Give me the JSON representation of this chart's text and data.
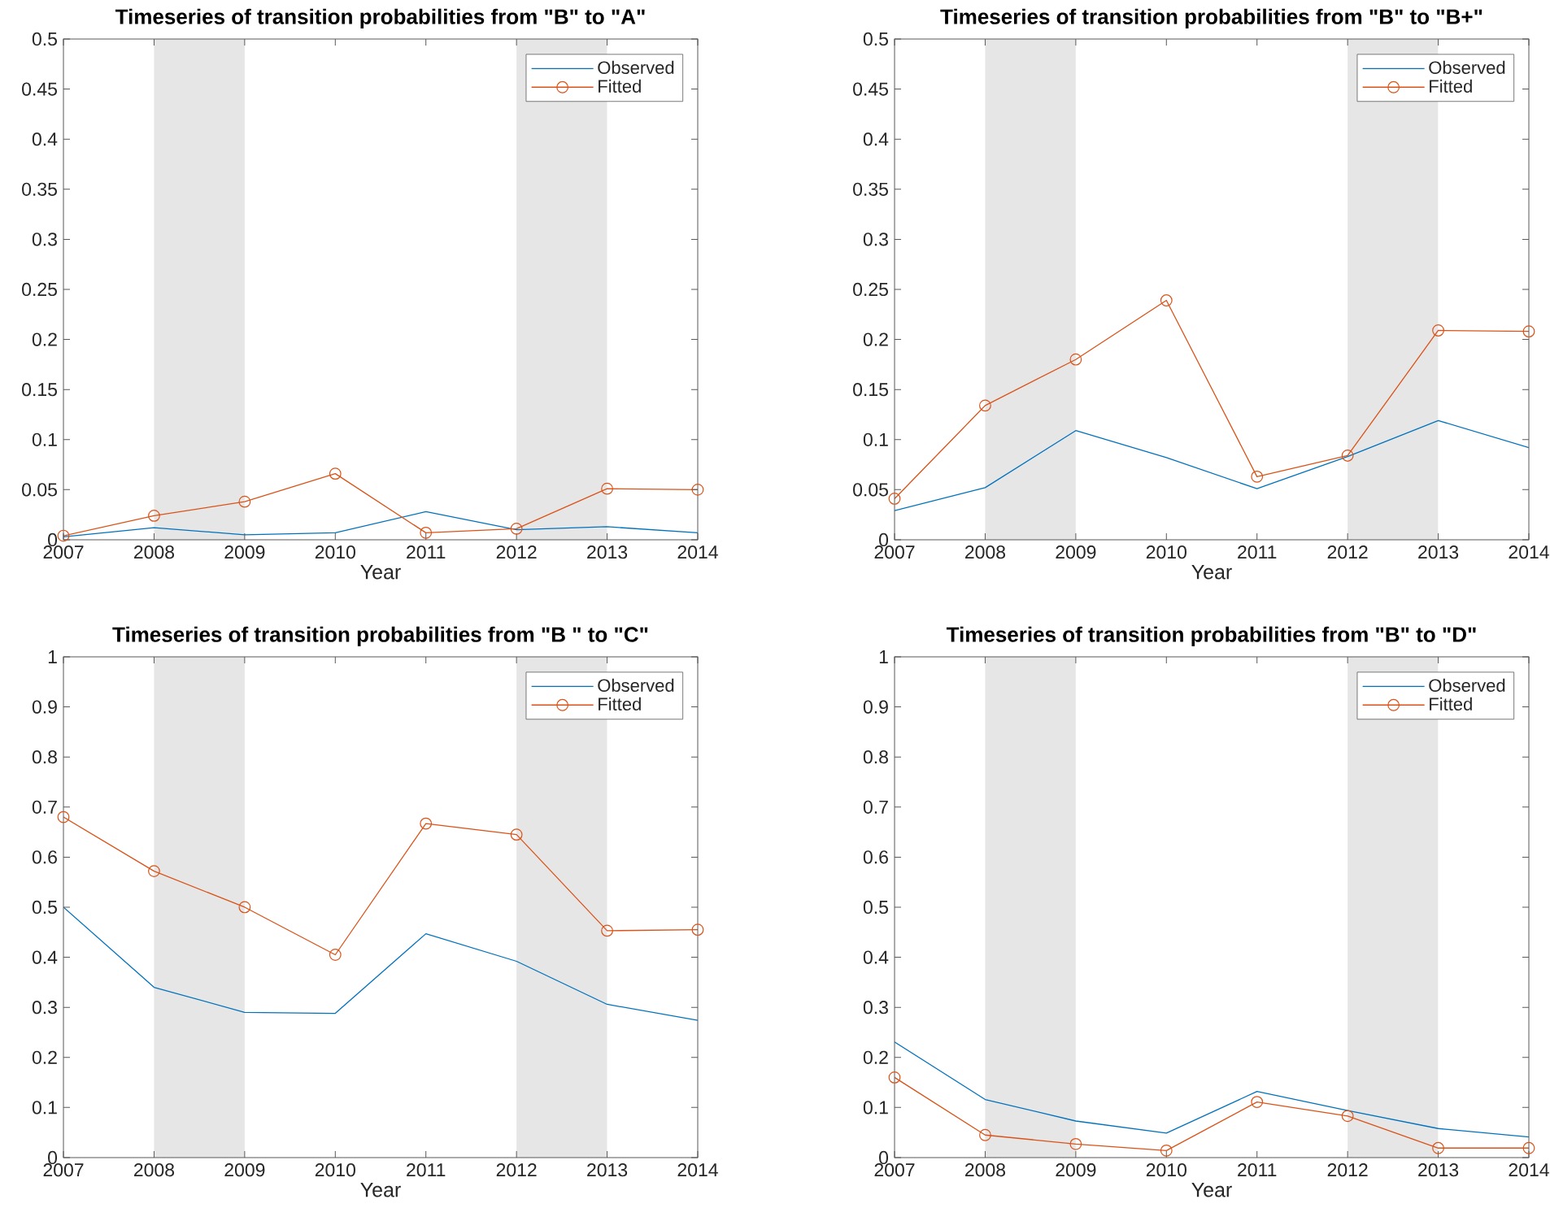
{
  "chart_data": [
    {
      "type": "line",
      "title": "Timeseries of transition probabilities from \"B\" to \"A\"",
      "xlabel": "Year",
      "x": [
        2007,
        2008,
        2009,
        2010,
        2011,
        2012,
        2013,
        2014
      ],
      "xlim": [
        2007,
        2014
      ],
      "xticks": [
        2007,
        2008,
        2009,
        2010,
        2011,
        2012,
        2013,
        2014
      ],
      "ylim": [
        0,
        0.5
      ],
      "yticks": [
        0,
        0.05,
        0.1,
        0.15,
        0.2,
        0.25,
        0.3,
        0.35,
        0.4,
        0.45,
        0.5
      ],
      "legend": "top right",
      "bands": [
        {
          "axis": "x",
          "from": 2008,
          "to": 2009,
          "color": "#e6e6e6"
        },
        {
          "axis": "x",
          "from": 2012,
          "to": 2013,
          "color": "#e6e6e6"
        }
      ],
      "series": [
        {
          "name": "Observed",
          "color": "#0072bd",
          "values": [
            0.003,
            0.012,
            0.005,
            0.007,
            0.028,
            0.01,
            0.013,
            0.007
          ]
        },
        {
          "name": "Fitted",
          "color": "#d95319",
          "marker": "circle",
          "values": [
            0.004,
            0.024,
            0.038,
            0.066,
            0.007,
            0.011,
            0.051,
            0.05
          ]
        }
      ]
    },
    {
      "type": "line",
      "title": "Timeseries of transition probabilities from \"B\" to \"B+\"",
      "xlabel": "Year",
      "x": [
        2007,
        2008,
        2009,
        2010,
        2011,
        2012,
        2013,
        2014
      ],
      "xlim": [
        2007,
        2014
      ],
      "xticks": [
        2007,
        2008,
        2009,
        2010,
        2011,
        2012,
        2013,
        2014
      ],
      "ylim": [
        0,
        0.5
      ],
      "yticks": [
        0,
        0.05,
        0.1,
        0.15,
        0.2,
        0.25,
        0.3,
        0.35,
        0.4,
        0.45,
        0.5
      ],
      "legend": "top right",
      "bands": [
        {
          "axis": "x",
          "from": 2008,
          "to": 2009,
          "color": "#e6e6e6"
        },
        {
          "axis": "x",
          "from": 2012,
          "to": 2013,
          "color": "#e6e6e6"
        }
      ],
      "series": [
        {
          "name": "Observed",
          "color": "#0072bd",
          "values": [
            0.029,
            0.052,
            0.109,
            0.082,
            0.051,
            0.083,
            0.119,
            0.092
          ]
        },
        {
          "name": "Fitted",
          "color": "#d95319",
          "marker": "circle",
          "values": [
            0.041,
            0.134,
            0.18,
            0.239,
            0.063,
            0.084,
            0.209,
            0.208
          ]
        }
      ]
    },
    {
      "type": "line",
      "title": "Timeseries of transition probabilities from \"B \" to \"C\"",
      "xlabel": "Year",
      "x": [
        2007,
        2008,
        2009,
        2010,
        2011,
        2012,
        2013,
        2014
      ],
      "xlim": [
        2007,
        2014
      ],
      "xticks": [
        2007,
        2008,
        2009,
        2010,
        2011,
        2012,
        2013,
        2014
      ],
      "ylim": [
        0,
        1
      ],
      "yticks": [
        0,
        0.1,
        0.2,
        0.3,
        0.4,
        0.5,
        0.6,
        0.7,
        0.8,
        0.9,
        1
      ],
      "legend": "top right",
      "bands": [
        {
          "axis": "x",
          "from": 2008,
          "to": 2009,
          "color": "#e6e6e6"
        },
        {
          "axis": "x",
          "from": 2012,
          "to": 2013,
          "color": "#e6e6e6"
        }
      ],
      "series": [
        {
          "name": "Observed",
          "color": "#0072bd",
          "values": [
            0.5,
            0.34,
            0.29,
            0.288,
            0.447,
            0.392,
            0.306,
            0.274
          ]
        },
        {
          "name": "Fitted",
          "color": "#d95319",
          "marker": "circle",
          "values": [
            0.68,
            0.572,
            0.5,
            0.405,
            0.667,
            0.645,
            0.453,
            0.455
          ]
        }
      ]
    },
    {
      "type": "line",
      "title": "Timeseries of transition probabilities from \"B\" to \"D\"",
      "xlabel": "Year",
      "x": [
        2007,
        2008,
        2009,
        2010,
        2011,
        2012,
        2013,
        2014
      ],
      "xlim": [
        2007,
        2014
      ],
      "xticks": [
        2007,
        2008,
        2009,
        2010,
        2011,
        2012,
        2013,
        2014
      ],
      "ylim": [
        0,
        1
      ],
      "yticks": [
        0,
        0.1,
        0.2,
        0.3,
        0.4,
        0.5,
        0.6,
        0.7,
        0.8,
        0.9,
        1
      ],
      "legend": "top right",
      "bands": [
        {
          "axis": "x",
          "from": 2008,
          "to": 2009,
          "color": "#e6e6e6"
        },
        {
          "axis": "x",
          "from": 2012,
          "to": 2013,
          "color": "#e6e6e6"
        }
      ],
      "series": [
        {
          "name": "Observed",
          "color": "#0072bd",
          "values": [
            0.231,
            0.116,
            0.073,
            0.049,
            0.132,
            0.094,
            0.058,
            0.041
          ]
        },
        {
          "name": "Fitted",
          "color": "#d95319",
          "marker": "circle",
          "values": [
            0.16,
            0.045,
            0.027,
            0.014,
            0.111,
            0.083,
            0.019,
            0.019
          ]
        }
      ]
    }
  ]
}
